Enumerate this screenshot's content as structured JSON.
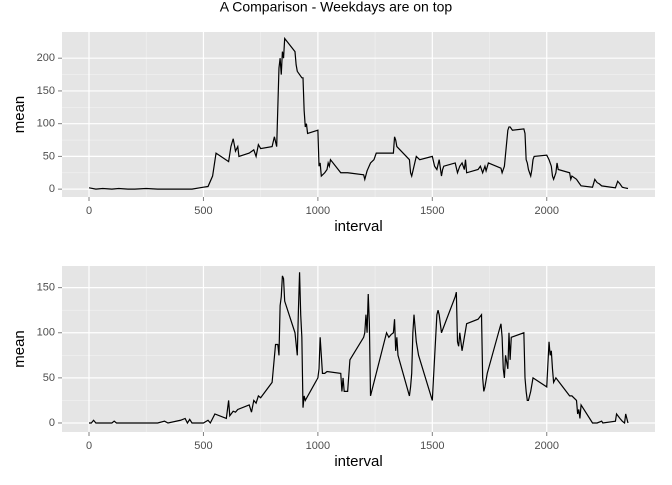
{
  "title": "A Comparison - Weekdays are on top",
  "chart_data": [
    {
      "type": "line",
      "xlabel": "interval",
      "ylabel": "mean",
      "color": "#000000",
      "grid": true,
      "xlim": [
        -118,
        2473
      ],
      "ylim": [
        -12,
        240
      ],
      "xticks": [
        0,
        500,
        1000,
        1500,
        2000
      ],
      "yticks": [
        0,
        50,
        100,
        150,
        200
      ],
      "x": [
        0,
        30,
        60,
        100,
        130,
        170,
        200,
        250,
        300,
        350,
        400,
        450,
        500,
        520,
        540,
        555,
        610,
        620,
        630,
        640,
        650,
        655,
        700,
        720,
        730,
        740,
        750,
        800,
        810,
        820,
        830,
        835,
        840,
        845,
        850,
        855,
        900,
        905,
        910,
        920,
        930,
        935,
        940,
        945,
        950,
        955,
        1000,
        1005,
        1010,
        1015,
        1030,
        1040,
        1045,
        1050,
        1055,
        1100,
        1110,
        1130,
        1200,
        1205,
        1215,
        1230,
        1245,
        1255,
        1300,
        1330,
        1335,
        1340,
        1345,
        1400,
        1405,
        1410,
        1420,
        1430,
        1445,
        1500,
        1510,
        1520,
        1530,
        1540,
        1545,
        1550,
        1600,
        1610,
        1620,
        1630,
        1640,
        1645,
        1650,
        1700,
        1710,
        1720,
        1730,
        1735,
        1745,
        1800,
        1805,
        1815,
        1830,
        1835,
        1840,
        1850,
        1900,
        1905,
        1910,
        1915,
        1920,
        1925,
        1930,
        1935,
        1940,
        1945,
        2000,
        2010,
        2020,
        2025,
        2030,
        2040,
        2045,
        2050,
        2100,
        2105,
        2110,
        2130,
        2140,
        2150,
        2200,
        2210,
        2220,
        2230,
        2240,
        2300,
        2310,
        2320,
        2330,
        2340,
        2355
      ],
      "values": [
        2,
        0,
        1,
        0,
        1,
        0,
        0,
        1,
        0,
        0,
        0,
        0,
        3,
        4,
        20,
        55,
        42,
        65,
        77,
        58,
        65,
        50,
        55,
        60,
        50,
        68,
        62,
        65,
        80,
        65,
        185,
        200,
        175,
        210,
        200,
        230,
        210,
        190,
        180,
        175,
        170,
        170,
        120,
        95,
        100,
        85,
        90,
        35,
        40,
        20,
        25,
        30,
        40,
        35,
        45,
        25,
        25,
        25,
        22,
        15,
        28,
        40,
        45,
        55,
        55,
        55,
        80,
        75,
        65,
        45,
        25,
        20,
        35,
        50,
        45,
        50,
        35,
        30,
        45,
        20,
        30,
        35,
        40,
        25,
        35,
        40,
        30,
        45,
        25,
        30,
        35,
        25,
        35,
        28,
        40,
        32,
        25,
        35,
        90,
        95,
        95,
        90,
        92,
        85,
        45,
        40,
        30,
        25,
        20,
        30,
        45,
        50,
        52,
        45,
        35,
        20,
        15,
        25,
        40,
        30,
        25,
        15,
        20,
        15,
        10,
        5,
        3,
        15,
        10,
        8,
        5,
        2,
        12,
        8,
        3,
        2,
        1
      ]
    },
    {
      "type": "line",
      "xlabel": "interval",
      "ylabel": "mean",
      "color": "#000000",
      "grid": true,
      "xlim": [
        -118,
        2473
      ],
      "ylim": [
        -10,
        174
      ],
      "xticks": [
        0,
        500,
        1000,
        1500,
        2000
      ],
      "yticks": [
        0,
        50,
        100,
        150
      ],
      "x": [
        0,
        10,
        20,
        30,
        100,
        110,
        120,
        200,
        300,
        330,
        345,
        400,
        420,
        430,
        440,
        450,
        500,
        520,
        530,
        540,
        550,
        600,
        610,
        615,
        630,
        640,
        650,
        700,
        710,
        720,
        730,
        740,
        750,
        800,
        815,
        825,
        830,
        835,
        840,
        845,
        850,
        855,
        900,
        910,
        915,
        920,
        925,
        930,
        935,
        940,
        945,
        1000,
        1005,
        1010,
        1015,
        1020,
        1030,
        1040,
        1100,
        1105,
        1110,
        1115,
        1130,
        1140,
        1200,
        1205,
        1210,
        1215,
        1220,
        1225,
        1230,
        1240,
        1300,
        1310,
        1320,
        1330,
        1335,
        1340,
        1345,
        1350,
        1400,
        1405,
        1410,
        1415,
        1420,
        1430,
        1440,
        1500,
        1520,
        1525,
        1530,
        1540,
        1600,
        1605,
        1610,
        1615,
        1620,
        1630,
        1640,
        1650,
        1700,
        1715,
        1720,
        1725,
        1730,
        1740,
        1800,
        1805,
        1810,
        1815,
        1820,
        1830,
        1835,
        1840,
        1845,
        1900,
        1905,
        1910,
        1915,
        1920,
        1930,
        1940,
        2000,
        2010,
        2015,
        2020,
        2025,
        2030,
        2040,
        2100,
        2110,
        2130,
        2135,
        2140,
        2145,
        2150,
        2200,
        2220,
        2240,
        2245,
        2300,
        2305,
        2320,
        2330,
        2340,
        2345,
        2350,
        2355
      ],
      "values": [
        0,
        0,
        3,
        0,
        0,
        2,
        0,
        0,
        0,
        2,
        0,
        3,
        5,
        0,
        4,
        0,
        0,
        3,
        0,
        5,
        10,
        5,
        25,
        8,
        13,
        12,
        15,
        20,
        12,
        25,
        22,
        30,
        28,
        45,
        87,
        87,
        75,
        130,
        140,
        163,
        160,
        135,
        100,
        75,
        125,
        167,
        120,
        95,
        17,
        30,
        25,
        50,
        60,
        95,
        75,
        55,
        55,
        57,
        55,
        35,
        50,
        35,
        35,
        70,
        95,
        100,
        120,
        100,
        143,
        110,
        30,
        40,
        100,
        95,
        98,
        100,
        115,
        80,
        95,
        75,
        30,
        40,
        55,
        100,
        120,
        90,
        75,
        25,
        120,
        125,
        120,
        100,
        140,
        145,
        90,
        85,
        100,
        80,
        95,
        110,
        115,
        120,
        50,
        35,
        40,
        55,
        110,
        95,
        60,
        50,
        75,
        60,
        100,
        70,
        95,
        100,
        50,
        35,
        25,
        25,
        35,
        50,
        40,
        90,
        75,
        80,
        60,
        45,
        50,
        30,
        30,
        25,
        10,
        15,
        5,
        20,
        0,
        0,
        2,
        0,
        2,
        10,
        5,
        2,
        0,
        10,
        5,
        0
      ]
    }
  ]
}
